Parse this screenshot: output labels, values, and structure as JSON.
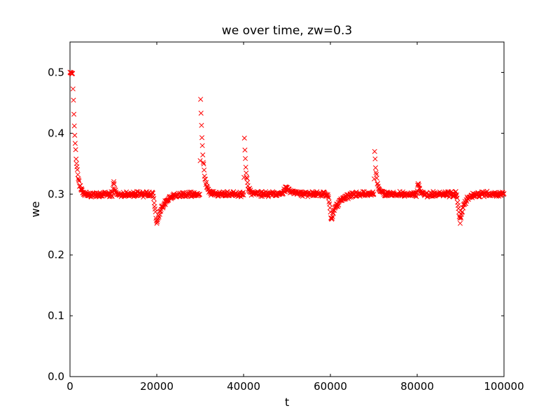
{
  "window": {
    "background": "#ffffff"
  },
  "chart_data": {
    "type": "scatter",
    "title": "we over time, zw=0.3",
    "xlabel": "t",
    "ylabel": "we",
    "xlim": [
      0,
      100000
    ],
    "ylim": [
      0,
      0.55
    ],
    "xticks": [
      {
        "v": 0,
        "label": "0"
      },
      {
        "v": 20000,
        "label": "20000"
      },
      {
        "v": 40000,
        "label": "40000"
      },
      {
        "v": 60000,
        "label": "60000"
      },
      {
        "v": 80000,
        "label": "80000"
      },
      {
        "v": 100000,
        "label": "100000"
      }
    ],
    "yticks": [
      {
        "v": 0.0,
        "label": "0.0"
      },
      {
        "v": 0.1,
        "label": "0.1"
      },
      {
        "v": 0.2,
        "label": "0.2"
      },
      {
        "v": 0.3,
        "label": "0.3"
      },
      {
        "v": 0.4,
        "label": "0.4"
      },
      {
        "v": 0.5,
        "label": "0.5"
      }
    ],
    "grid": false,
    "legend": null,
    "marker": {
      "shape": "x",
      "color": "#ff0000",
      "size": 6.4,
      "stroke_width": 1
    },
    "series": {
      "name": "we",
      "baseline": 0.3,
      "noise_amplitude": 0.005,
      "sample_step": 100,
      "initial_transient": {
        "start_value": 0.5,
        "hold_until_t": 600,
        "decay_tau": 700
      },
      "events": [
        {
          "t": 2000,
          "extreme": 0.2955,
          "tau": 2500,
          "ramp": 1400,
          "kind": "undershoot-down"
        },
        {
          "t": 10100,
          "extreme": 0.322,
          "tau": 260,
          "ramp": 400,
          "kind": "spike-up"
        },
        {
          "t": 20000,
          "extreme": 0.252,
          "tau": 1600,
          "ramp": 800,
          "kind": "dip-down"
        },
        {
          "t": 30100,
          "extreme": 0.458,
          "tau": 580,
          "ramp": 150,
          "kind": "spike-up"
        },
        {
          "t": 40200,
          "extreme": 0.39,
          "tau": 420,
          "ramp": 150,
          "kind": "spike-up"
        },
        {
          "t": 49900,
          "extreme": 0.309,
          "tau": 900,
          "ramp": 1800,
          "kind": "bump-up"
        },
        {
          "t": 60200,
          "extreme": 0.258,
          "tau": 1500,
          "ramp": 700,
          "kind": "dip-down"
        },
        {
          "t": 70200,
          "extreme": 0.371,
          "tau": 480,
          "ramp": 150,
          "kind": "spike-up"
        },
        {
          "t": 80200,
          "extreme": 0.32,
          "tau": 300,
          "ramp": 300,
          "kind": "spike-up"
        },
        {
          "t": 89900,
          "extreme": 0.255,
          "tau": 1000,
          "ramp": 800,
          "kind": "dip-down"
        }
      ]
    }
  }
}
